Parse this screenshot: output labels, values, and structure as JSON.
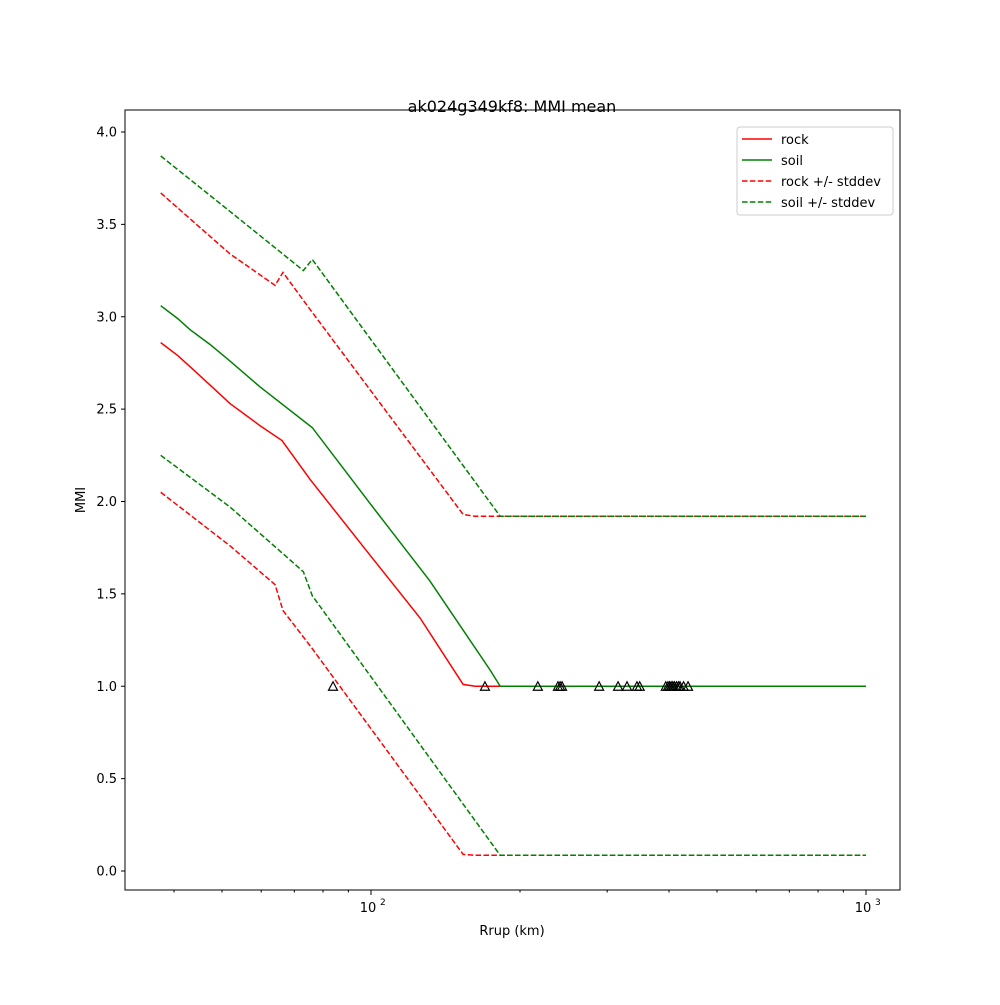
{
  "chart_data": {
    "type": "line",
    "title": "ak024g349kf8: MMI mean",
    "xlabel": "Rrup (km)",
    "ylabel": "MMI",
    "xscale": "log",
    "xlim": [
      31.8,
      1170
    ],
    "ylim": [
      -0.1,
      4.12
    ],
    "x_major_ticks": [
      {
        "value": 100,
        "base": "10",
        "exp": "2"
      },
      {
        "value": 1000,
        "base": "10",
        "exp": "3"
      }
    ],
    "y_ticks": [
      0.0,
      0.5,
      1.0,
      1.5,
      2.0,
      2.5,
      3.0,
      3.5,
      4.0
    ],
    "y_tick_labels": [
      "0.0",
      "0.5",
      "1.0",
      "1.5",
      "2.0",
      "2.5",
      "3.0",
      "3.5",
      "4.0"
    ],
    "legend_position": "top-right",
    "series": [
      {
        "name": "rock",
        "color": "#ff0000",
        "style": "solid",
        "x": [
          37.6,
          40.7,
          43.1,
          47.3,
          51.9,
          59.7,
          66.1,
          75.3,
          99.5,
          125.6,
          153.5,
          162.3,
          1000
        ],
        "y": [
          2.86,
          2.79,
          2.73,
          2.63,
          2.53,
          2.41,
          2.33,
          2.12,
          1.71,
          1.37,
          1.01,
          1.0,
          1.0
        ]
      },
      {
        "name": "soil",
        "color": "#008000",
        "style": "solid",
        "x": [
          37.6,
          40.7,
          43.1,
          47.3,
          51.9,
          59.7,
          76.1,
          99.5,
          131.5,
          173.8,
          182.4,
          1000
        ],
        "y": [
          3.06,
          2.99,
          2.93,
          2.85,
          2.76,
          2.62,
          2.4,
          1.99,
          1.57,
          1.09,
          1.0,
          1.0
        ]
      },
      {
        "name": "rock +/- stddev",
        "color": "#ff0000",
        "style": "dashed",
        "x": [
          37.6,
          51.9,
          64.0,
          66.4,
          75.3,
          153.5,
          162.3,
          1000
        ],
        "y": [
          3.67,
          3.34,
          3.17,
          3.24,
          3.04,
          1.93,
          1.92,
          1.92
        ],
        "lower_x": [
          37.6,
          51.9,
          64.0,
          66.4,
          75.3,
          153.5,
          162.3,
          1000
        ],
        "lower_y": [
          2.05,
          1.76,
          1.55,
          1.41,
          1.22,
          0.09,
          0.085,
          0.085
        ]
      },
      {
        "name": "soil +/- stddev",
        "color": "#008000",
        "style": "dashed",
        "x": [
          37.6,
          51.9,
          73.0,
          76.1,
          182.4,
          1000
        ],
        "y": [
          3.87,
          3.57,
          3.25,
          3.31,
          1.92,
          1.92
        ],
        "lower_x": [
          37.6,
          51.9,
          73.0,
          76.1,
          182.4,
          1000
        ],
        "lower_y": [
          2.25,
          1.97,
          1.62,
          1.49,
          0.085,
          0.085
        ]
      }
    ],
    "observations": {
      "marker": "triangle",
      "x": [
        83.8,
        169.9,
        217.3,
        238.6,
        241,
        243.2,
        289,
        315.6,
        329,
        344.6,
        349,
        394,
        398,
        401,
        404,
        407,
        410,
        414,
        418,
        421,
        428,
        437
      ],
      "y": [
        1,
        1,
        1,
        1,
        1,
        1,
        1,
        1,
        1,
        1,
        1,
        1,
        1,
        1,
        1,
        1,
        1,
        1,
        1,
        1,
        1,
        1
      ]
    }
  }
}
